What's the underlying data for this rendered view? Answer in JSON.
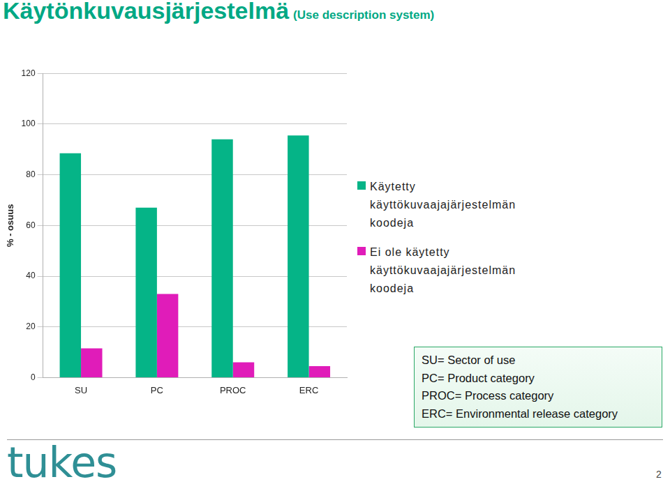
{
  "chart_data": {
    "type": "bar",
    "title": "Käytönkuvausjärjestelmä",
    "subtitle": "(Use description system)",
    "y_label": "% - osuus",
    "categories": [
      "SU",
      "PC",
      "PROC",
      "ERC"
    ],
    "series": [
      {
        "name": "Käytetty käyttökuvaajajärjestelmän koodeja",
        "color": "#05b487",
        "values": [
          88.5,
          67,
          94,
          95.5
        ]
      },
      {
        "name": "Ei ole käytetty käyttökuvaajajärjestelmän koodeja",
        "color": "#e01cb9",
        "values": [
          11.5,
          33,
          6,
          4.5
        ]
      }
    ],
    "ylim": [
      0,
      120
    ],
    "yticks": [
      0,
      20,
      40,
      60,
      80,
      100,
      120
    ],
    "grid": true,
    "legend": "right",
    "annotations": [
      "SU= Sector of use",
      "PC= Product category",
      "PROC= Process category",
      "ERC= Environmental release category"
    ]
  },
  "footer": {
    "logo": "tukes",
    "page": "2"
  }
}
